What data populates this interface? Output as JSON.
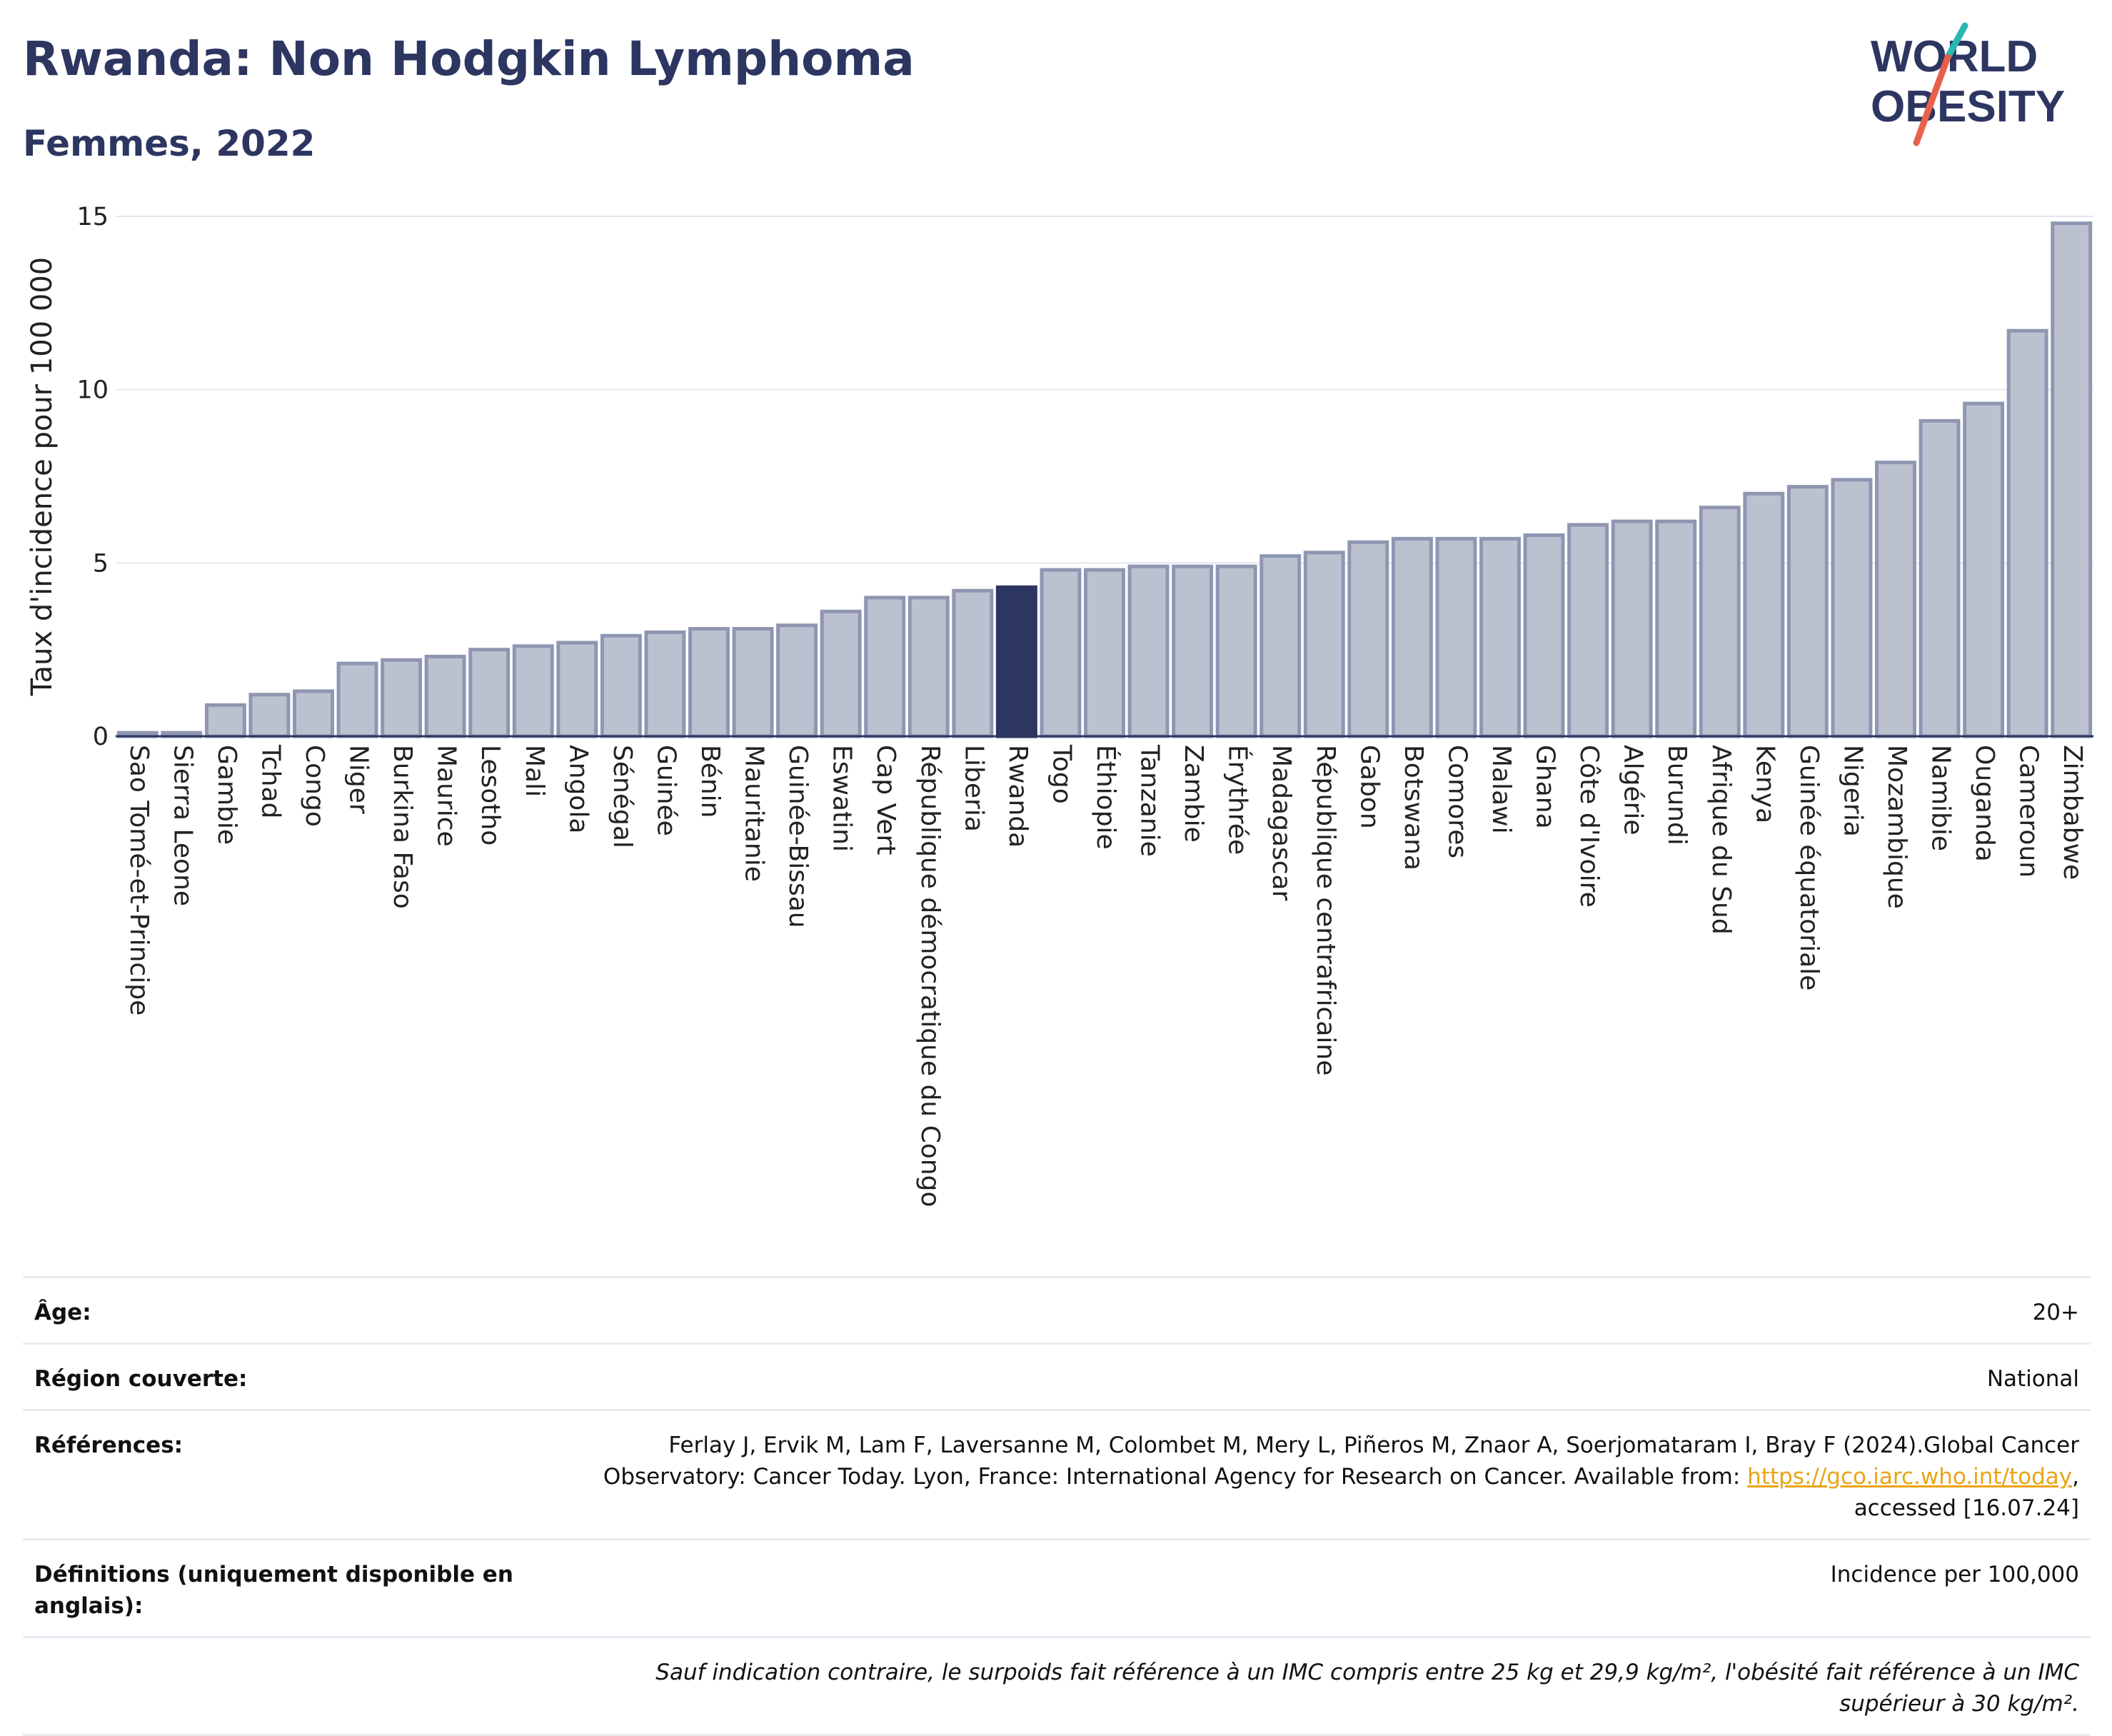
{
  "header": {
    "title": "Rwanda: Non Hodgkin Lymphoma",
    "subtitle": "Femmes, 2022"
  },
  "logo": {
    "line1": "WORLD",
    "line2": "OBESITY"
  },
  "colors": {
    "highlight": "#2d3561",
    "bar_fill": "#bcc1d0",
    "bar_stroke": "#8f96b2",
    "text": "#2d3561"
  },
  "chart_data": {
    "type": "bar",
    "ylabel": "Taux d'incidence pour 100 000",
    "ylim": [
      0,
      15
    ],
    "yticks": [
      0,
      5,
      10,
      15
    ],
    "highlight": "Rwanda",
    "categories": [
      "Sao Tomé-et-Principe",
      "Sierra Leone",
      "Gambie",
      "Tchad",
      "Congo",
      "Niger",
      "Burkina Faso",
      "Maurice",
      "Lesotho",
      "Mali",
      "Angola",
      "Sénégal",
      "Guinée",
      "Bénin",
      "Mauritanie",
      "Guinée-Bissau",
      "Eswatini",
      "Cap Vert",
      "République démocratique du Congo",
      "Liberia",
      "Rwanda",
      "Togo",
      "Éthiopie",
      "Tanzanie",
      "Zambie",
      "Érythrée",
      "Madagascar",
      "République centrafricaine",
      "Gabon",
      "Botswana",
      "Comores",
      "Malawi",
      "Ghana",
      "Côte d'Ivoire",
      "Algérie",
      "Burundi",
      "Afrique du Sud",
      "Kenya",
      "Guinée équatoriale",
      "Nigeria",
      "Mozambique",
      "Namibie",
      "Ouganda",
      "Cameroun",
      "Zimbabwe"
    ],
    "values": [
      0.1,
      0.1,
      0.9,
      1.2,
      1.3,
      2.1,
      2.2,
      2.3,
      2.5,
      2.6,
      2.7,
      2.9,
      3.0,
      3.1,
      3.1,
      3.2,
      3.6,
      4.0,
      4.0,
      4.2,
      4.3,
      4.8,
      4.8,
      4.9,
      4.9,
      4.9,
      5.2,
      5.3,
      5.6,
      5.7,
      5.7,
      5.7,
      5.8,
      6.1,
      6.2,
      6.2,
      6.6,
      7.0,
      7.2,
      7.4,
      7.9,
      9.1,
      9.6,
      11.7,
      14.8
    ]
  },
  "info": {
    "age_label": "Âge:",
    "age_value": "20+",
    "region_label": "Région couverte:",
    "region_value": "National",
    "refs_label": "Références:",
    "refs_text_1": "Ferlay J, Ervik M, Lam F, Laversanne M, Colombet M, Mery L, Piñeros M, Znaor A, Soerjomataram I, Bray F (2024).Global Cancer Observatory: Cancer Today. Lyon, France: International Agency for Research on Cancer. Available from: ",
    "refs_link": "https://gco.iarc.who.int/today",
    "refs_text_2": ", accessed [16.07.24]",
    "defs_label": "Définitions (uniquement disponible en anglais):",
    "defs_value": "Incidence per 100,000",
    "note": "Sauf indication contraire, le surpoids fait référence à un IMC compris entre 25 kg et 29,9 kg/m², l'obésité fait référence à un IMC supérieur à 30 kg/m²."
  }
}
